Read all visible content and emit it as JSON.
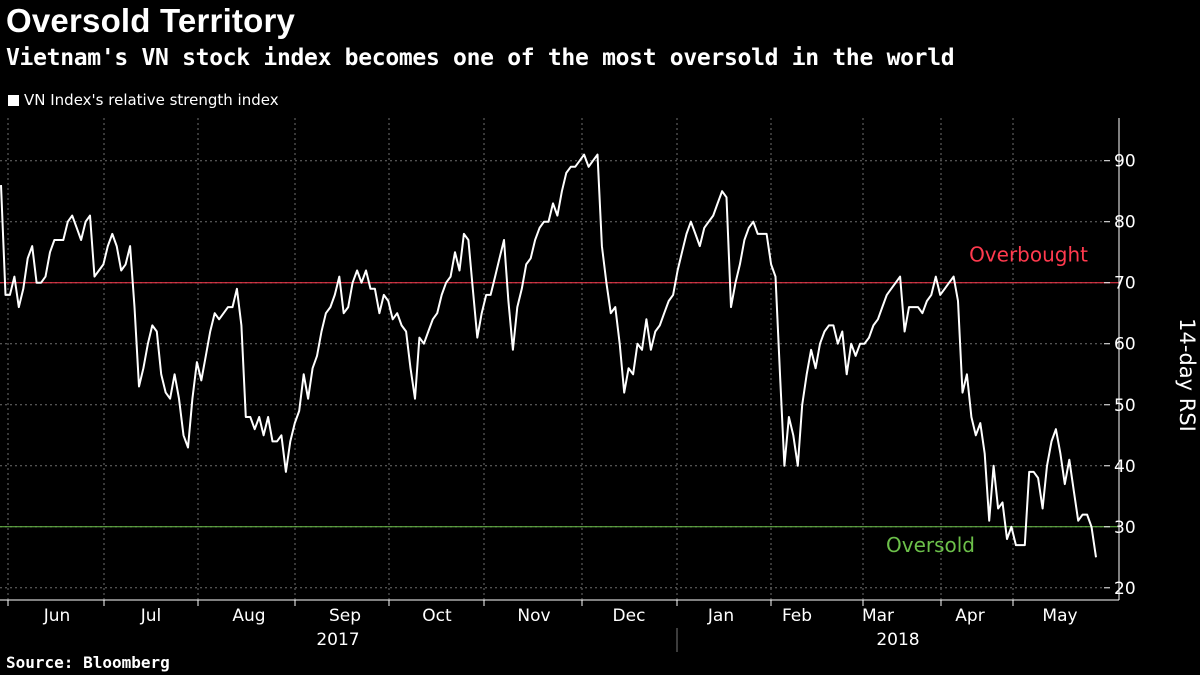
{
  "chart_data": {
    "type": "line",
    "title": "Oversold Territory",
    "subtitle": "Vietnam's VN stock index becomes one of the most oversold in the world",
    "legend": [
      "VN Index's relative strength index"
    ],
    "ylabel": "14-day RSI",
    "ylim": [
      18,
      97
    ],
    "yticks": [
      20,
      30,
      40,
      50,
      60,
      70,
      80,
      90
    ],
    "month_labels": [
      "Jun",
      "Jul",
      "Aug",
      "Sep",
      "Oct",
      "Nov",
      "Dec",
      "Jan",
      "Feb",
      "Mar",
      "Apr",
      "May"
    ],
    "year_labels": [
      "2017",
      "2018"
    ],
    "reference_lines": [
      {
        "label": "Overbought",
        "value": 70,
        "color": "#ff3a4e"
      },
      {
        "label": "Oversold",
        "value": 30,
        "color": "#6cc04a"
      }
    ],
    "source": "Source: Bloomberg",
    "series": [
      {
        "name": "VN Index's relative strength index",
        "color": "#ffffff",
        "values": [
          86,
          68,
          68,
          71,
          66,
          69,
          74,
          76,
          70,
          70,
          71,
          75,
          77,
          77,
          77,
          80,
          81,
          79,
          77,
          80,
          81,
          71,
          72,
          73,
          76,
          78,
          76,
          72,
          73,
          76,
          66,
          53,
          56,
          60,
          63,
          62,
          55,
          52,
          51,
          55,
          51,
          45,
          43,
          51,
          57,
          54,
          58,
          62,
          65,
          64,
          65,
          66,
          66,
          69,
          63,
          48,
          48,
          46,
          48,
          45,
          48,
          44,
          44,
          45,
          39,
          44,
          47,
          49,
          55,
          51,
          56,
          58,
          62,
          65,
          66,
          68,
          71,
          65,
          66,
          70,
          72,
          70,
          72,
          69,
          69,
          65,
          68,
          67,
          64,
          65,
          63,
          62,
          56,
          51,
          61,
          60,
          62,
          64,
          65,
          68,
          70,
          71,
          75,
          72,
          78,
          77,
          69,
          61,
          65,
          68,
          68,
          71,
          74,
          77,
          67,
          59,
          66,
          69,
          73,
          74,
          77,
          79,
          80,
          80,
          83,
          81,
          85,
          88,
          89,
          89,
          90,
          91,
          89,
          90,
          91,
          76,
          70,
          65,
          66,
          60,
          52,
          56,
          55,
          60,
          59,
          64,
          59,
          62,
          63,
          65,
          67,
          68,
          72,
          75,
          78,
          80,
          78,
          76,
          79,
          80,
          81,
          83,
          85,
          84,
          66,
          70,
          73,
          77,
          79,
          80,
          78,
          78,
          78,
          73,
          71,
          55,
          40,
          48,
          45,
          40,
          50,
          55,
          59,
          56,
          60,
          62,
          63,
          63,
          60,
          62,
          55,
          60,
          58,
          60,
          60,
          61,
          63,
          64,
          66,
          68,
          69,
          70,
          71,
          62,
          66,
          66,
          66,
          65,
          67,
          68,
          71,
          68,
          69,
          70,
          71,
          67,
          52,
          55,
          48,
          45,
          47,
          42,
          31,
          40,
          33,
          34,
          28,
          30,
          27,
          27,
          27,
          39,
          39,
          38,
          33,
          40,
          44,
          46,
          42,
          37,
          41,
          36,
          31,
          32,
          32,
          30,
          25
        ]
      }
    ]
  }
}
